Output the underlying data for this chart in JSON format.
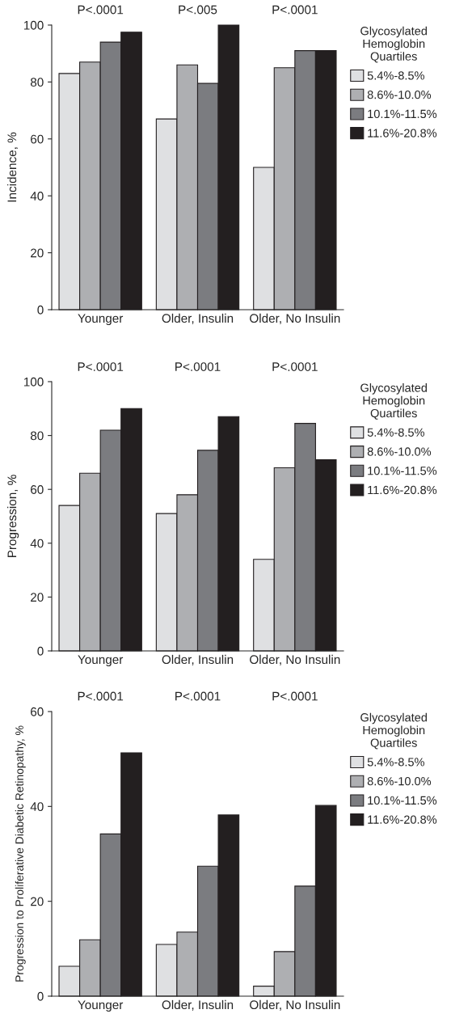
{
  "chart_data": [
    {
      "type": "bar",
      "ylabel": "Incidence, %",
      "categories": [
        "Younger",
        "Older, Insulin",
        "Older, No Insulin"
      ],
      "series": [
        {
          "name": "5.4%-8.5%",
          "color": "#dfe0e2",
          "values": [
            83,
            67,
            50
          ]
        },
        {
          "name": "8.6%-10.0%",
          "color": "#aeafb2",
          "values": [
            87,
            86,
            85
          ]
        },
        {
          "name": "10.1%-11.5%",
          "color": "#7b7c80",
          "values": [
            94,
            79.5,
            91
          ]
        },
        {
          "name": "11.6%-20.8%",
          "color": "#231f20",
          "values": [
            97.5,
            100,
            91
          ]
        }
      ],
      "ylim": [
        0,
        100
      ],
      "yticks": [
        0,
        20,
        40,
        60,
        80,
        100
      ],
      "grid": false,
      "legend": "right",
      "legend_title": "Glycosylated Hemoglobin Quartiles",
      "annotations": [
        "P<.0001",
        "P<.005",
        "P<.0001"
      ]
    },
    {
      "type": "bar",
      "ylabel": "Progression, %",
      "categories": [
        "Younger",
        "Older, Insulin",
        "Older, No Insulin"
      ],
      "series": [
        {
          "name": "5.4%-8.5%",
          "color": "#dfe0e2",
          "values": [
            54,
            51,
            34
          ]
        },
        {
          "name": "8.6%-10.0%",
          "color": "#aeafb2",
          "values": [
            66,
            58,
            68
          ]
        },
        {
          "name": "10.1%-11.5%",
          "color": "#7b7c80",
          "values": [
            82,
            74.5,
            84.5
          ]
        },
        {
          "name": "11.6%-20.8%",
          "color": "#231f20",
          "values": [
            90,
            87,
            71
          ]
        }
      ],
      "ylim": [
        0,
        100
      ],
      "yticks": [
        0,
        20,
        40,
        60,
        80,
        100
      ],
      "grid": false,
      "legend": "right",
      "legend_title": "Glycosylated Hemoglobin Quartiles",
      "annotations": [
        "P<.0001",
        "P<.0001",
        "P<.0001"
      ]
    },
    {
      "type": "bar",
      "ylabel": "Progression to Proliferative Diabetic Retinopathy, %",
      "categories": [
        "Younger",
        "Older, Insulin",
        "Older, No Insulin"
      ],
      "series": [
        {
          "name": "5.4%-8.5%",
          "color": "#dfe0e2",
          "values": [
            6.3,
            10.9,
            2.1
          ]
        },
        {
          "name": "8.6%-10.0%",
          "color": "#aeafb2",
          "values": [
            11.9,
            13.5,
            9.4
          ]
        },
        {
          "name": "10.1%-11.5%",
          "color": "#7b7c80",
          "values": [
            34.2,
            27.4,
            23.2
          ]
        },
        {
          "name": "11.6%-20.8%",
          "color": "#231f20",
          "values": [
            51.3,
            38.2,
            40.2
          ]
        }
      ],
      "ylim": [
        0,
        60
      ],
      "yticks": [
        0,
        20,
        40,
        60
      ],
      "grid": false,
      "legend": "right",
      "legend_title": "Glycosylated Hemoglobin Quartiles",
      "annotations": [
        "P<.0001",
        "P<.0001",
        "P<.0001"
      ]
    }
  ]
}
